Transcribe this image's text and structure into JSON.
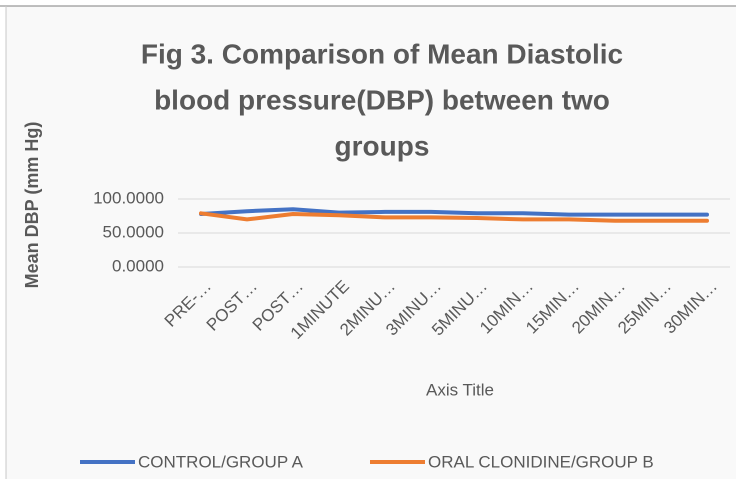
{
  "chart_data": {
    "type": "line",
    "title_lines": [
      "Fig 3. Comparison of Mean Diastolic",
      "blood pressure(DBP) between two",
      "groups"
    ],
    "y_label": "Mean DBP (mm Hg)",
    "x_label": "Axis Title",
    "categories": [
      "PRE-…",
      "POST…",
      "POST…",
      "1MINUTE",
      "2MINU…",
      "3MINU…",
      "5MINU…",
      "10MIN…",
      "15MIN…",
      "20MIN…",
      "25MIN…",
      "30MIN…"
    ],
    "series": [
      {
        "name": "CONTROL/GROUP A",
        "color": "#4472c4",
        "values": [
          78,
          82,
          85,
          80,
          81,
          81,
          79,
          79,
          77,
          77,
          77,
          77
        ]
      },
      {
        "name": "ORAL CLONIDINE/GROUP B",
        "color": "#ed7d31",
        "values": [
          79,
          70,
          78,
          76,
          73,
          73,
          72,
          70,
          70,
          68,
          68,
          68
        ]
      }
    ],
    "ylim": [
      0,
      100
    ],
    "yticks": [
      {
        "value": 0,
        "label": "0.0000"
      },
      {
        "value": 50,
        "label": "50.0000"
      },
      {
        "value": 100,
        "label": "100.0000"
      }
    ],
    "grid": true
  }
}
